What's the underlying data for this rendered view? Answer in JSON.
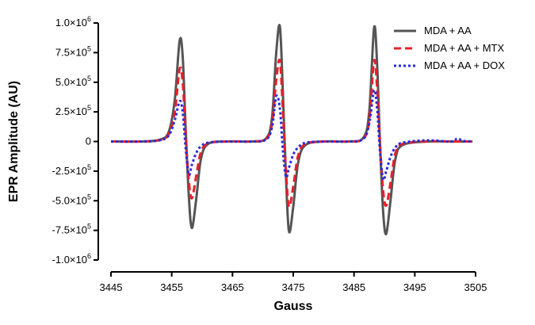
{
  "chart_data": {
    "type": "line",
    "xlabel": "Gauss",
    "ylabel": "EPR Amplitude  (AU)",
    "xlim": [
      3445,
      3505
    ],
    "ylim": [
      -1000000,
      1000000
    ],
    "x_ticks": [
      3445,
      3455,
      3465,
      3475,
      3485,
      3495,
      3505
    ],
    "y_ticks": [
      {
        "value": 1000000,
        "mantissa": "1.0",
        "sign": "",
        "exp": "6"
      },
      {
        "value": 750000,
        "mantissa": "7.5",
        "sign": "",
        "exp": "5"
      },
      {
        "value": 500000,
        "mantissa": "5.0",
        "sign": "",
        "exp": "5"
      },
      {
        "value": 250000,
        "mantissa": "2.5",
        "sign": "",
        "exp": "5"
      },
      {
        "value": 0,
        "plain": "0"
      },
      {
        "value": -250000,
        "mantissa": "2.5",
        "sign": "-",
        "exp": "5"
      },
      {
        "value": -500000,
        "mantissa": "5.0",
        "sign": "-",
        "exp": "5"
      },
      {
        "value": -750000,
        "mantissa": "7.5",
        "sign": "-",
        "exp": "5"
      },
      {
        "value": -1000000,
        "mantissa": "1.0",
        "sign": "-",
        "exp": "6"
      }
    ],
    "grid": false,
    "legend_position": "top-right",
    "series": [
      {
        "name": "MDA + AA",
        "color": "#555555",
        "style": "solid",
        "x": [
          3445,
          3450,
          3453,
          3454.5,
          3455.5,
          3456.3,
          3456.8,
          3457.3,
          3457.8,
          3458.3,
          3459,
          3459.8,
          3461,
          3464,
          3468,
          3470.5,
          3471.5,
          3472.2,
          3472.8,
          3473.3,
          3473.8,
          3474.3,
          3475,
          3475.8,
          3477,
          3480,
          3484,
          3486.5,
          3487.5,
          3488.3,
          3488.8,
          3489.3,
          3489.8,
          3490.3,
          3491,
          3491.8,
          3493,
          3497,
          3501,
          3504.5
        ],
        "y": [
          0,
          0,
          15000,
          80000,
          350000,
          850000,
          720000,
          100000,
          -450000,
          -730000,
          -500000,
          -150000,
          -20000,
          0,
          0,
          25000,
          200000,
          750000,
          970000,
          400000,
          -300000,
          -760000,
          -550000,
          -180000,
          -30000,
          0,
          0,
          30000,
          250000,
          960000,
          650000,
          -50000,
          -600000,
          -780000,
          -500000,
          -150000,
          -30000,
          0,
          0,
          0
        ]
      },
      {
        "name": "MDA + AA + MTX",
        "color": "#e8202a",
        "style": "dashed",
        "x": [
          3445,
          3450,
          3453,
          3454.5,
          3455.5,
          3456.3,
          3456.8,
          3457.3,
          3457.8,
          3458.3,
          3459,
          3459.8,
          3461,
          3464,
          3468,
          3470.5,
          3471.5,
          3472.2,
          3472.8,
          3473.3,
          3473.8,
          3474.3,
          3475,
          3475.8,
          3477,
          3480,
          3484,
          3486.5,
          3487.5,
          3488.3,
          3488.8,
          3489.3,
          3489.8,
          3490.3,
          3491,
          3491.8,
          3493,
          3497,
          3501,
          3504.5
        ],
        "y": [
          0,
          0,
          12000,
          60000,
          250000,
          610000,
          500000,
          50000,
          -320000,
          -480000,
          -300000,
          -90000,
          -15000,
          0,
          0,
          20000,
          150000,
          520000,
          680000,
          250000,
          -250000,
          -550000,
          -380000,
          -120000,
          -20000,
          0,
          0,
          22000,
          180000,
          680000,
          450000,
          -40000,
          -420000,
          -540000,
          -350000,
          -100000,
          -20000,
          0,
          0,
          0
        ]
      },
      {
        "name": "MDA + AA + DOX",
        "color": "#2a2ad6",
        "style": "dotted",
        "x": [
          3445,
          3450,
          3453,
          3454.5,
          3455.5,
          3456.3,
          3456.8,
          3457.3,
          3457.8,
          3458.3,
          3459,
          3459.8,
          3461,
          3464,
          3468,
          3470.5,
          3471.5,
          3472.2,
          3472.8,
          3473.3,
          3473.8,
          3474.3,
          3475,
          3475.8,
          3477,
          3480,
          3484,
          3486.5,
          3487.5,
          3488.3,
          3488.8,
          3489.3,
          3489.8,
          3490.3,
          3491,
          3491.8,
          3493,
          3497,
          3501,
          3502,
          3503,
          3504.5
        ],
        "y": [
          0,
          0,
          10000,
          50000,
          180000,
          340000,
          250000,
          -60000,
          -280000,
          -200000,
          -100000,
          -40000,
          -10000,
          0,
          0,
          15000,
          120000,
          380000,
          280000,
          -80000,
          -300000,
          -220000,
          -110000,
          -50000,
          -10000,
          0,
          0,
          20000,
          150000,
          430000,
          280000,
          -100000,
          -320000,
          -250000,
          -130000,
          -50000,
          -10000,
          10000,
          0,
          25000,
          5000,
          0
        ]
      }
    ]
  }
}
